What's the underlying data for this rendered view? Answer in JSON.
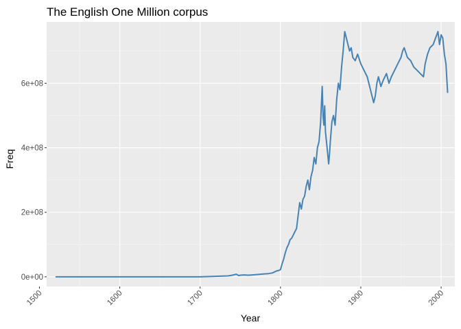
{
  "chart_data": {
    "type": "line",
    "title": "The English One Million corpus",
    "xlabel": "Year",
    "ylabel": "Freq",
    "xlim": [
      1509,
      2017
    ],
    "ylim": [
      -30000000,
      790000000
    ],
    "x_ticks": [
      {
        "value": 1500,
        "label": "1500"
      },
      {
        "value": 1600,
        "label": "1600"
      },
      {
        "value": 1700,
        "label": "1700"
      },
      {
        "value": 1800,
        "label": "1800"
      },
      {
        "value": 1900,
        "label": "1900"
      },
      {
        "value": 2000,
        "label": "2000"
      }
    ],
    "y_ticks": [
      {
        "value": 0,
        "label": "0e+00"
      },
      {
        "value": 200000000,
        "label": "2e+08"
      },
      {
        "value": 400000000,
        "label": "4e+08"
      },
      {
        "value": 600000000,
        "label": "6e+08"
      }
    ],
    "grid": true,
    "panel_background": "#ebebeb",
    "line_color": "#4682b4",
    "series": [
      {
        "x": [
          1520,
          1600,
          1700,
          1725,
          1735,
          1740,
          1745,
          1748,
          1750,
          1755,
          1760,
          1765,
          1770,
          1775,
          1780,
          1785,
          1790,
          1795,
          1798,
          1800,
          1802,
          1804,
          1806,
          1808,
          1810,
          1812,
          1814,
          1816,
          1818,
          1820,
          1822,
          1824,
          1826,
          1828,
          1830,
          1832,
          1834,
          1836,
          1838,
          1840,
          1842,
          1844,
          1846,
          1848,
          1850,
          1851,
          1852,
          1853,
          1854,
          1855,
          1856,
          1858,
          1860,
          1861,
          1862,
          1864,
          1866,
          1868,
          1870,
          1872,
          1874,
          1876,
          1878,
          1880,
          1882,
          1884,
          1886,
          1888,
          1890,
          1893,
          1896,
          1900,
          1904,
          1908,
          1912,
          1916,
          1918,
          1920,
          1922,
          1925,
          1928,
          1932,
          1935,
          1938,
          1942,
          1946,
          1950,
          1952,
          1954,
          1958,
          1962,
          1966,
          1970,
          1974,
          1978,
          1980,
          1983,
          1986,
          1990,
          1993,
          1996,
          1998,
          2000,
          2002,
          2004,
          2006,
          2008
        ],
        "y": [
          0,
          0,
          0,
          2000000,
          3000000,
          5000000,
          8000000,
          4000000,
          5000000,
          6000000,
          5000000,
          6000000,
          7000000,
          8000000,
          9000000,
          10000000,
          12000000,
          18000000,
          20000000,
          22000000,
          40000000,
          55000000,
          75000000,
          90000000,
          100000000,
          115000000,
          120000000,
          130000000,
          140000000,
          150000000,
          190000000,
          230000000,
          210000000,
          240000000,
          250000000,
          280000000,
          300000000,
          270000000,
          310000000,
          330000000,
          370000000,
          350000000,
          400000000,
          420000000,
          480000000,
          540000000,
          590000000,
          500000000,
          470000000,
          530000000,
          450000000,
          400000000,
          350000000,
          380000000,
          420000000,
          480000000,
          500000000,
          470000000,
          550000000,
          600000000,
          580000000,
          650000000,
          700000000,
          760000000,
          740000000,
          720000000,
          700000000,
          710000000,
          680000000,
          670000000,
          690000000,
          660000000,
          640000000,
          620000000,
          580000000,
          540000000,
          560000000,
          600000000,
          620000000,
          590000000,
          610000000,
          630000000,
          600000000,
          620000000,
          640000000,
          660000000,
          680000000,
          700000000,
          710000000,
          680000000,
          670000000,
          650000000,
          640000000,
          630000000,
          620000000,
          660000000,
          690000000,
          710000000,
          720000000,
          740000000,
          760000000,
          720000000,
          750000000,
          740000000,
          690000000,
          660000000,
          570000000
        ]
      }
    ]
  }
}
